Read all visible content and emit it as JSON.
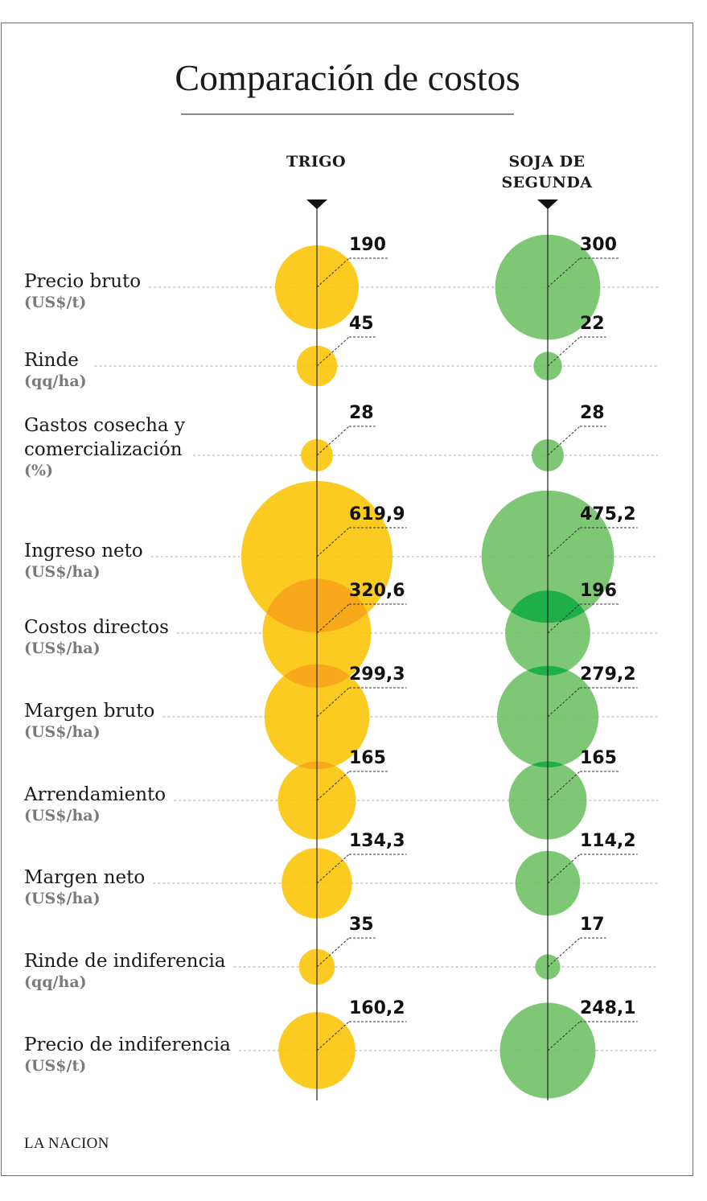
{
  "title": "Comparación de costos",
  "source": "LA NACION",
  "columns": [
    {
      "name": "TRIGO",
      "color": "#FCC402"
    },
    {
      "name": "SOJA DE SEGUNDA",
      "name_lines": [
        "SOJA DE",
        "SEGUNDA"
      ],
      "color": "#6CC062"
    }
  ],
  "rows": [
    {
      "label": "Precio bruto",
      "unit": "(US$/t)"
    },
    {
      "label": "Rinde",
      "unit": "(qq/ha)"
    },
    {
      "label": "Gastos cosecha y comercialización",
      "label_lines": [
        "Gastos cosecha y",
        "comercialización"
      ],
      "unit": "(%)"
    },
    {
      "label": "Ingreso neto",
      "unit": "(US$/ha)"
    },
    {
      "label": "Costos directos",
      "unit": "(US$/ha)"
    },
    {
      "label": "Margen bruto",
      "unit": "(US$/ha)"
    },
    {
      "label": "Arrendamiento",
      "unit": "(US$/ha)"
    },
    {
      "label": "Margen neto",
      "unit": "(US$/ha)"
    },
    {
      "label": "Rinde de indiferencia",
      "unit": "(qq/ha)"
    },
    {
      "label": "Precio de indiferencia",
      "unit": "(US$/t)"
    }
  ],
  "chart_data": {
    "type": "scatter",
    "series": [
      {
        "name": "TRIGO",
        "values": [
          190,
          45,
          28,
          619.9,
          320.6,
          299.3,
          165,
          134.3,
          35,
          160.2
        ],
        "labels": [
          "190",
          "45",
          "28",
          "619,9",
          "320,6",
          "299,3",
          "165",
          "134,3",
          "35",
          "160,2"
        ]
      },
      {
        "name": "SOJA DE SEGUNDA",
        "values": [
          300,
          22,
          28,
          475.2,
          196,
          279.2,
          165,
          114.2,
          17,
          248.1
        ],
        "labels": [
          "300",
          "22",
          "28",
          "475,2",
          "196",
          "279,2",
          "165",
          "114,2",
          "17",
          "248,1"
        ]
      }
    ],
    "categories": [
      "Precio bruto",
      "Rinde",
      "Gastos cosecha y comercialización",
      "Ingreso neto",
      "Costos directos",
      "Margen bruto",
      "Arrendamiento",
      "Margen neto",
      "Rinde de indiferencia",
      "Precio de indiferencia"
    ]
  }
}
